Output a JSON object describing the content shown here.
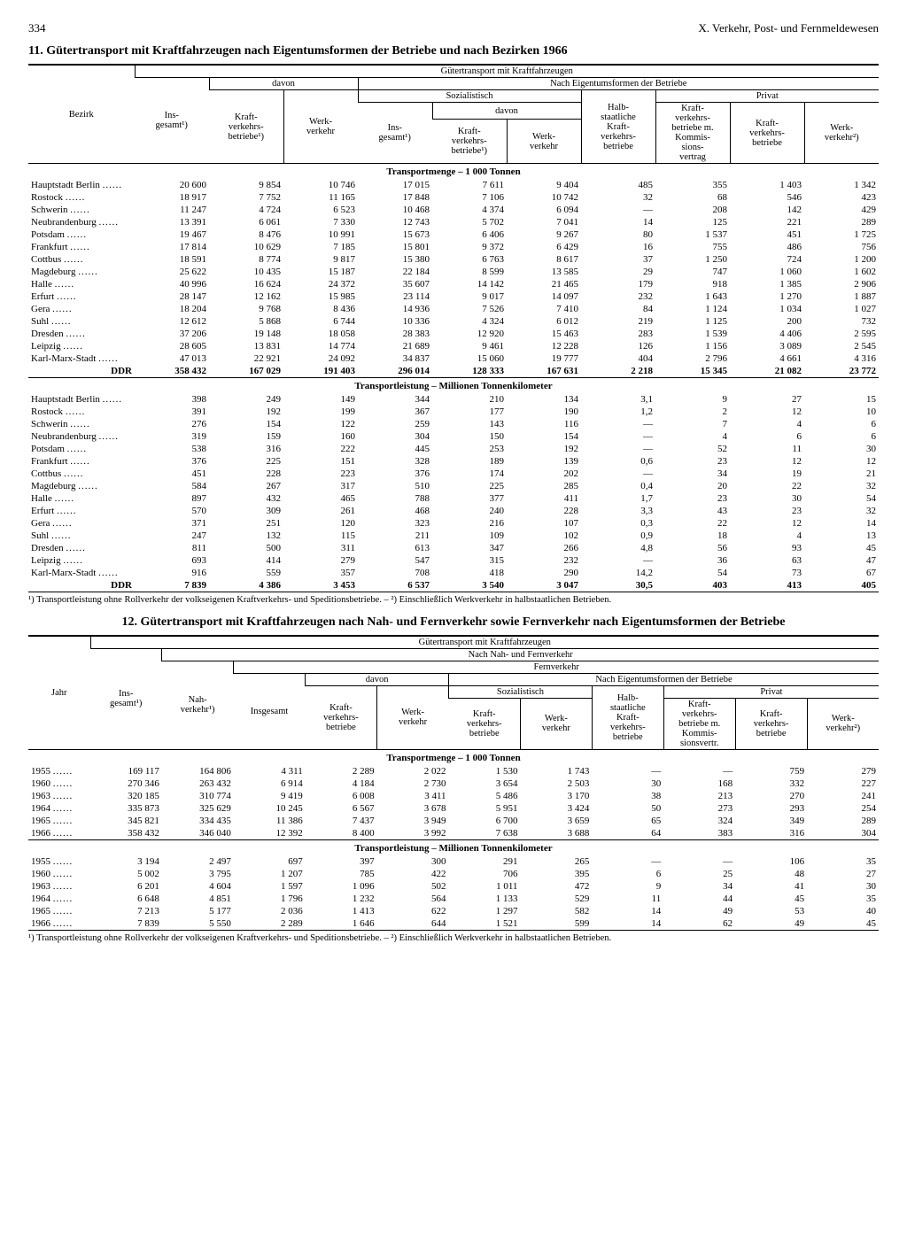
{
  "page": {
    "number": "334",
    "chapter": "X. Verkehr, Post- und Fernmeldewesen"
  },
  "table11": {
    "title": "11. Gütertransport mit Kraftfahrzeugen nach Eigentumsformen der Betriebe und nach Bezirken 1966",
    "superheader": "Gütertransport mit Kraftfahrzeugen",
    "davon": "davon",
    "h_eigentum": "Nach Eigentumsformen der Betriebe",
    "h_sozial": "Sozialistisch",
    "h_privat": "Privat",
    "cols": {
      "bezirk": "Bezirk",
      "insgesamt": "Ins-\ngesamt¹)",
      "kvb": "Kraft-\nverkehrs-\nbetriebe¹)",
      "werk": "Werk-\nverkehr",
      "ins2": "Ins-\ngesamt¹)",
      "kvb2": "Kraft-\nverkehrs-\nbetriebe¹)",
      "werk2": "Werk-\nverkehr",
      "halb": "Halb-\nstaatliche\nKraft-\nverkehrs-\nbetriebe",
      "komm": "Kraft-\nverkehrs-\nbetriebe m.\nKommis-\nsions-\nvertrag",
      "kvb3": "Kraft-\nverkehrs-\nbetriebe",
      "werk3": "Werk-\nverkehr²)"
    },
    "sub_menge": "Transportmenge – 1 000 Tonnen",
    "sub_leistung": "Transportleistung – Millionen Tonnenkilometer",
    "rows_menge": [
      [
        "Hauptstadt Berlin",
        "20 600",
        "9 854",
        "10 746",
        "17 015",
        "7 611",
        "9 404",
        "485",
        "355",
        "1 403",
        "1 342"
      ],
      [
        "Rostock",
        "18 917",
        "7 752",
        "11 165",
        "17 848",
        "7 106",
        "10 742",
        "32",
        "68",
        "546",
        "423"
      ],
      [
        "Schwerin",
        "11 247",
        "4 724",
        "6 523",
        "10 468",
        "4 374",
        "6 094",
        "—",
        "208",
        "142",
        "429"
      ],
      [
        "Neubrandenburg",
        "13 391",
        "6 061",
        "7 330",
        "12 743",
        "5 702",
        "7 041",
        "14",
        "125",
        "221",
        "289"
      ],
      [
        "Potsdam",
        "19 467",
        "8 476",
        "10 991",
        "15 673",
        "6 406",
        "9 267",
        "80",
        "1 537",
        "451",
        "1 725"
      ],
      [
        "Frankfurt",
        "17 814",
        "10 629",
        "7 185",
        "15 801",
        "9 372",
        "6 429",
        "16",
        "755",
        "486",
        "756"
      ],
      [
        "Cottbus",
        "18 591",
        "8 774",
        "9 817",
        "15 380",
        "6 763",
        "8 617",
        "37",
        "1 250",
        "724",
        "1 200"
      ],
      [
        "Magdeburg",
        "25 622",
        "10 435",
        "15 187",
        "22 184",
        "8 599",
        "13 585",
        "29",
        "747",
        "1 060",
        "1 602"
      ],
      [
        "Halle",
        "40 996",
        "16 624",
        "24 372",
        "35 607",
        "14 142",
        "21 465",
        "179",
        "918",
        "1 385",
        "2 906"
      ],
      [
        "Erfurt",
        "28 147",
        "12 162",
        "15 985",
        "23 114",
        "9 017",
        "14 097",
        "232",
        "1 643",
        "1 270",
        "1 887"
      ],
      [
        "Gera",
        "18 204",
        "9 768",
        "8 436",
        "14 936",
        "7 526",
        "7 410",
        "84",
        "1 124",
        "1 034",
        "1 027"
      ],
      [
        "Suhl",
        "12 612",
        "5 868",
        "6 744",
        "10 336",
        "4 324",
        "6 012",
        "219",
        "1 125",
        "200",
        "732"
      ],
      [
        "Dresden",
        "37 206",
        "19 148",
        "18 058",
        "28 383",
        "12 920",
        "15 463",
        "283",
        "1 539",
        "4 406",
        "2 595"
      ],
      [
        "Leipzig",
        "28 605",
        "13 831",
        "14 774",
        "21 689",
        "9 461",
        "12 228",
        "126",
        "1 156",
        "3 089",
        "2 545"
      ],
      [
        "Karl-Marx-Stadt",
        "47 013",
        "22 921",
        "24 092",
        "34 837",
        "15 060",
        "19 777",
        "404",
        "2 796",
        "4 661",
        "4 316"
      ]
    ],
    "ddr_menge": [
      "DDR",
      "358 432",
      "167 029",
      "191 403",
      "296 014",
      "128 333",
      "167 631",
      "2 218",
      "15 345",
      "21 082",
      "23 772"
    ],
    "rows_leistung": [
      [
        "Hauptstadt Berlin",
        "398",
        "249",
        "149",
        "344",
        "210",
        "134",
        "3,1",
        "9",
        "27",
        "15"
      ],
      [
        "Rostock",
        "391",
        "192",
        "199",
        "367",
        "177",
        "190",
        "1,2",
        "2",
        "12",
        "10"
      ],
      [
        "Schwerin",
        "276",
        "154",
        "122",
        "259",
        "143",
        "116",
        "—",
        "7",
        "4",
        "6"
      ],
      [
        "Neubrandenburg",
        "319",
        "159",
        "160",
        "304",
        "150",
        "154",
        "—",
        "4",
        "6",
        "6"
      ],
      [
        "Potsdam",
        "538",
        "316",
        "222",
        "445",
        "253",
        "192",
        "—",
        "52",
        "11",
        "30"
      ],
      [
        "Frankfurt",
        "376",
        "225",
        "151",
        "328",
        "189",
        "139",
        "0,6",
        "23",
        "12",
        "12"
      ],
      [
        "Cottbus",
        "451",
        "228",
        "223",
        "376",
        "174",
        "202",
        "—",
        "34",
        "19",
        "21"
      ],
      [
        "Magdeburg",
        "584",
        "267",
        "317",
        "510",
        "225",
        "285",
        "0,4",
        "20",
        "22",
        "32"
      ],
      [
        "Halle",
        "897",
        "432",
        "465",
        "788",
        "377",
        "411",
        "1,7",
        "23",
        "30",
        "54"
      ],
      [
        "Erfurt",
        "570",
        "309",
        "261",
        "468",
        "240",
        "228",
        "3,3",
        "43",
        "23",
        "32"
      ],
      [
        "Gera",
        "371",
        "251",
        "120",
        "323",
        "216",
        "107",
        "0,3",
        "22",
        "12",
        "14"
      ],
      [
        "Suhl",
        "247",
        "132",
        "115",
        "211",
        "109",
        "102",
        "0,9",
        "18",
        "4",
        "13"
      ],
      [
        "Dresden",
        "811",
        "500",
        "311",
        "613",
        "347",
        "266",
        "4,8",
        "56",
        "93",
        "45"
      ],
      [
        "Leipzig",
        "693",
        "414",
        "279",
        "547",
        "315",
        "232",
        "—",
        "36",
        "63",
        "47"
      ],
      [
        "Karl-Marx-Stadt",
        "916",
        "559",
        "357",
        "708",
        "418",
        "290",
        "14,2",
        "54",
        "73",
        "67"
      ]
    ],
    "ddr_leistung": [
      "DDR",
      "7 839",
      "4 386",
      "3 453",
      "6 537",
      "3 540",
      "3 047",
      "30,5",
      "403",
      "413",
      "405"
    ],
    "footnote": "¹) Transportleistung ohne Rollverkehr der volkseigenen Kraftverkehrs- und Speditionsbetriebe. – ²) Einschließlich Werkverkehr in halbstaatlichen Betrieben."
  },
  "table12": {
    "title": "12. Gütertransport mit Kraftfahrzeugen nach Nah- und Fernverkehr sowie Fernverkehr nach Eigentumsformen der Betriebe",
    "superheader": "Gütertransport mit Kraftfahrzeugen",
    "h_nahfern": "Nach Nah- und Fernverkehr",
    "h_fern": "Fernverkehr",
    "davon": "davon",
    "h_eigentum": "Nach Eigentumsformen der Betriebe",
    "h_sozial": "Sozialistisch",
    "h_privat": "Privat",
    "cols": {
      "jahr": "Jahr",
      "ins": "Ins-\ngesamt¹)",
      "nah": "Nah-\nverkehr¹)",
      "insg": "Insgesamt",
      "kvb": "Kraft-\nverkehrs-\nbetriebe",
      "werk": "Werk-\nverkehr",
      "kvb2": "Kraft-\nverkehrs-\nbetriebe",
      "werk2": "Werk-\nverkehr",
      "halb": "Halb-\nstaatliche\nKraft-\nverkehrs-\nbetriebe",
      "komm": "Kraft-\nverkehrs-\nbetriebe m.\nKommis-\nsionsvertr.",
      "kvb3": "Kraft-\nverkehrs-\nbetriebe",
      "werk3": "Werk-\nverkehr²)"
    },
    "sub_menge": "Transportmenge – 1 000 Tonnen",
    "sub_leistung": "Transportleistung – Millionen Tonnenkilometer",
    "rows_menge": [
      [
        "1955",
        "169 117",
        "164 806",
        "4 311",
        "2 289",
        "2 022",
        "1 530",
        "1 743",
        "—",
        "—",
        "759",
        "279"
      ],
      [
        "1960",
        "270 346",
        "263 432",
        "6 914",
        "4 184",
        "2 730",
        "3 654",
        "2 503",
        "30",
        "168",
        "332",
        "227"
      ],
      [
        "1963",
        "320 185",
        "310 774",
        "9 419",
        "6 008",
        "3 411",
        "5 486",
        "3 170",
        "38",
        "213",
        "270",
        "241"
      ],
      [
        "1964",
        "335 873",
        "325 629",
        "10 245",
        "6 567",
        "3 678",
        "5 951",
        "3 424",
        "50",
        "273",
        "293",
        "254"
      ],
      [
        "1965",
        "345 821",
        "334 435",
        "11 386",
        "7 437",
        "3 949",
        "6 700",
        "3 659",
        "65",
        "324",
        "349",
        "289"
      ],
      [
        "1966",
        "358 432",
        "346 040",
        "12 392",
        "8 400",
        "3 992",
        "7 638",
        "3 688",
        "64",
        "383",
        "316",
        "304"
      ]
    ],
    "rows_leistung": [
      [
        "1955",
        "3 194",
        "2 497",
        "697",
        "397",
        "300",
        "291",
        "265",
        "—",
        "—",
        "106",
        "35"
      ],
      [
        "1960",
        "5 002",
        "3 795",
        "1 207",
        "785",
        "422",
        "706",
        "395",
        "6",
        "25",
        "48",
        "27"
      ],
      [
        "1963",
        "6 201",
        "4 604",
        "1 597",
        "1 096",
        "502",
        "1 011",
        "472",
        "9",
        "34",
        "41",
        "30"
      ],
      [
        "1964",
        "6 648",
        "4 851",
        "1 796",
        "1 232",
        "564",
        "1 133",
        "529",
        "11",
        "44",
        "45",
        "35"
      ],
      [
        "1965",
        "7 213",
        "5 177",
        "2 036",
        "1 413",
        "622",
        "1 297",
        "582",
        "14",
        "49",
        "53",
        "40"
      ],
      [
        "1966",
        "7 839",
        "5 550",
        "2 289",
        "1 646",
        "644",
        "1 521",
        "599",
        "14",
        "62",
        "49",
        "45"
      ]
    ],
    "footnote": "¹) Transportleistung ohne Rollverkehr der volkseigenen Kraftverkehrs- und Speditionsbetriebe. – ²) Einschließlich Werkverkehr in halbstaatlichen Betrieben."
  }
}
